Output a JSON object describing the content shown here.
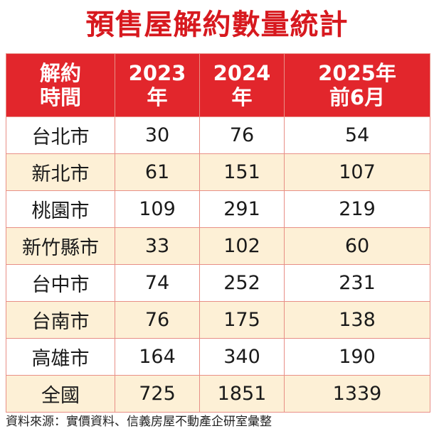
{
  "title": "預售屋解約數量統計",
  "table": {
    "headers": [
      [
        "解約",
        "時間"
      ],
      [
        "2023",
        "年"
      ],
      [
        "2024",
        "年"
      ],
      [
        "2025年",
        "前6月"
      ]
    ],
    "rows": [
      [
        "台北市",
        "30",
        "76",
        "54"
      ],
      [
        "新北市",
        "61",
        "151",
        "107"
      ],
      [
        "桃園市",
        "109",
        "291",
        "219"
      ],
      [
        "新竹縣市",
        "33",
        "102",
        "60"
      ],
      [
        "台中市",
        "74",
        "252",
        "231"
      ],
      [
        "台南市",
        "76",
        "175",
        "138"
      ],
      [
        "高雄市",
        "164",
        "340",
        "190"
      ],
      [
        "全國",
        "725",
        "1851",
        "1339"
      ]
    ]
  },
  "source": "資料來源：實價資料、信義房屋不動產企研室彙整",
  "colors": {
    "title": "#d7191f",
    "header_bg": "#e2262c",
    "stripe": "#fdf0d6",
    "border": "#e88f86"
  }
}
